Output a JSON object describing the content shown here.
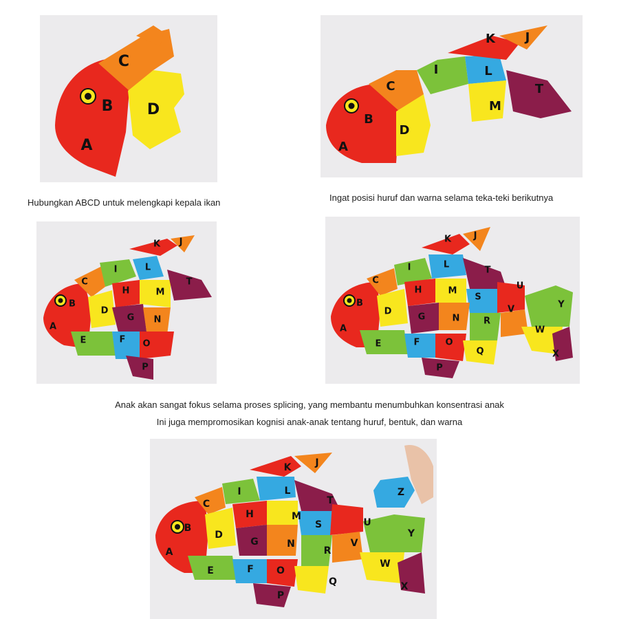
{
  "captions": {
    "c1": "Hubungkan ABCD untuk melengkapi kepala ikan",
    "c2": "Ingat posisi huruf dan warna selama teka-teki berikutnya",
    "c3": "Anak akan sangat fokus selama proses splicing, yang membantu menumbuhkan konsentrasi anak",
    "c4": "Ini juga mempromosikan kognisi anak-anak tentang huruf, bentuk, dan warna"
  },
  "colors": {
    "background": "#ecebed",
    "red": "#e8281e",
    "orange": "#f3851d",
    "yellow": "#f8e61e",
    "green": "#7cc23a",
    "blue": "#35a9e1",
    "purple": "#8b1d4a"
  },
  "photos": {
    "p1": {
      "letters": [
        "A",
        "B",
        "C",
        "D"
      ]
    },
    "p2": {
      "letters": [
        "A",
        "B",
        "C",
        "D",
        "I",
        "L",
        "K",
        "J",
        "M",
        "T"
      ]
    },
    "p3": {
      "letters": [
        "A",
        "B",
        "C",
        "D",
        "E",
        "F",
        "G",
        "H",
        "I",
        "J",
        "K",
        "L",
        "M",
        "N",
        "O",
        "P",
        "T"
      ]
    },
    "p4": {
      "letters": [
        "A",
        "B",
        "C",
        "D",
        "E",
        "F",
        "G",
        "H",
        "I",
        "J",
        "K",
        "L",
        "M",
        "N",
        "O",
        "P",
        "Q",
        "R",
        "S",
        "T",
        "U",
        "V",
        "W",
        "X",
        "Y"
      ]
    },
    "p5": {
      "letters": [
        "A",
        "B",
        "C",
        "D",
        "E",
        "F",
        "G",
        "H",
        "I",
        "J",
        "K",
        "L",
        "M",
        "N",
        "O",
        "P",
        "Q",
        "R",
        "S",
        "T",
        "U",
        "V",
        "W",
        "X",
        "Y",
        "Z"
      ]
    }
  }
}
